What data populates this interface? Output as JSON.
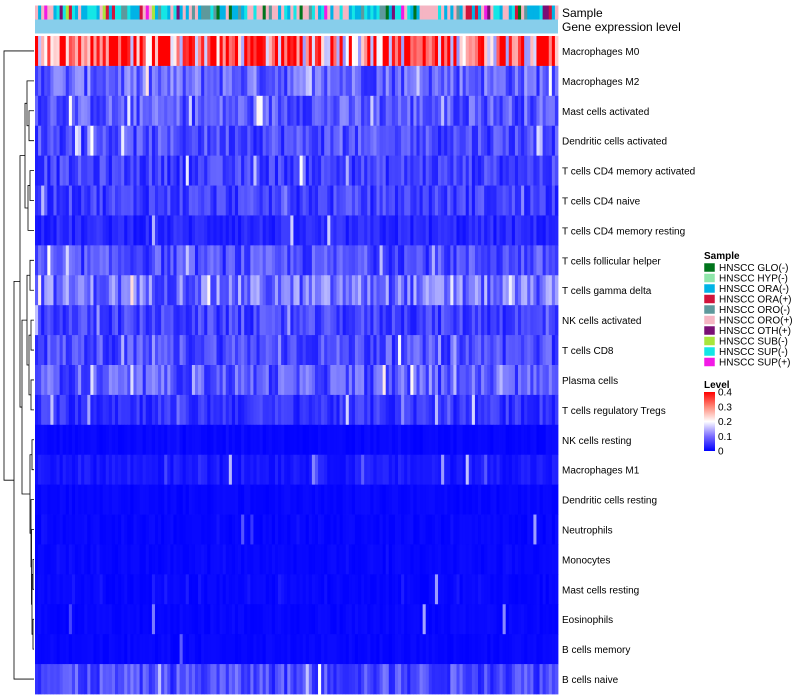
{
  "chart_data": {
    "type": "heatmap",
    "annotation_titles": [
      "Sample",
      "Gene expression level"
    ],
    "row_labels": [
      "Macrophages M0",
      "Macrophages M2",
      "Mast cells activated",
      "Dendritic cells activated",
      "T cells CD4 memory activated",
      "T cells CD4 naive",
      "T cells CD4 memory resting",
      "T cells follicular helper",
      "T cells gamma delta",
      "NK cells activated",
      "T cells CD8",
      "Plasma cells",
      "T cells regulatory  Tregs",
      "NK cells resting",
      "Macrophages M1",
      "Dendritic cells resting",
      "Neutrophils",
      "Monocytes",
      "Mast cells resting",
      "Eosinophils",
      "B cells memory",
      "B cells naive"
    ],
    "row_typical_level": [
      0.32,
      0.08,
      0.07,
      0.06,
      0.05,
      0.05,
      0.03,
      0.06,
      0.09,
      0.05,
      0.06,
      0.07,
      0.04,
      0.01,
      0.02,
      0.005,
      0.01,
      0.01,
      0.015,
      0.005,
      0.005,
      0.06
    ],
    "n_samples": 170,
    "sample_legend": {
      "title": "Sample",
      "items": [
        {
          "label": "HNSCC GLO(-)",
          "color": "#00741B"
        },
        {
          "label": "HNSCC HYP(-)",
          "color": "#8FE6AA"
        },
        {
          "label": "HNSCC ORA(-)",
          "color": "#00B3E6"
        },
        {
          "label": "HNSCC ORA(+)",
          "color": "#D1143C"
        },
        {
          "label": "HNSCC ORO(-)",
          "color": "#5E999C"
        },
        {
          "label": "HNSCC ORO(+)",
          "color": "#F5B5C3"
        },
        {
          "label": "HNSCC OTH(+)",
          "color": "#7A1075"
        },
        {
          "label": "HNSCC SUB(-)",
          "color": "#A8E63D"
        },
        {
          "label": "HNSCC SUP(-)",
          "color": "#14E6E6"
        },
        {
          "label": "HNSCC SUP(+)",
          "color": "#F21AE6"
        }
      ]
    },
    "level_legend": {
      "title": "Level",
      "ticks": [
        0.4,
        0.3,
        0.2,
        0.1,
        0
      ],
      "range": [
        0,
        0.4
      ],
      "colors": {
        "low": "#0000FF",
        "mid": "#FFFFFF",
        "high": "#FF0000"
      }
    },
    "expression_annotation_color": "#87CEEB"
  }
}
